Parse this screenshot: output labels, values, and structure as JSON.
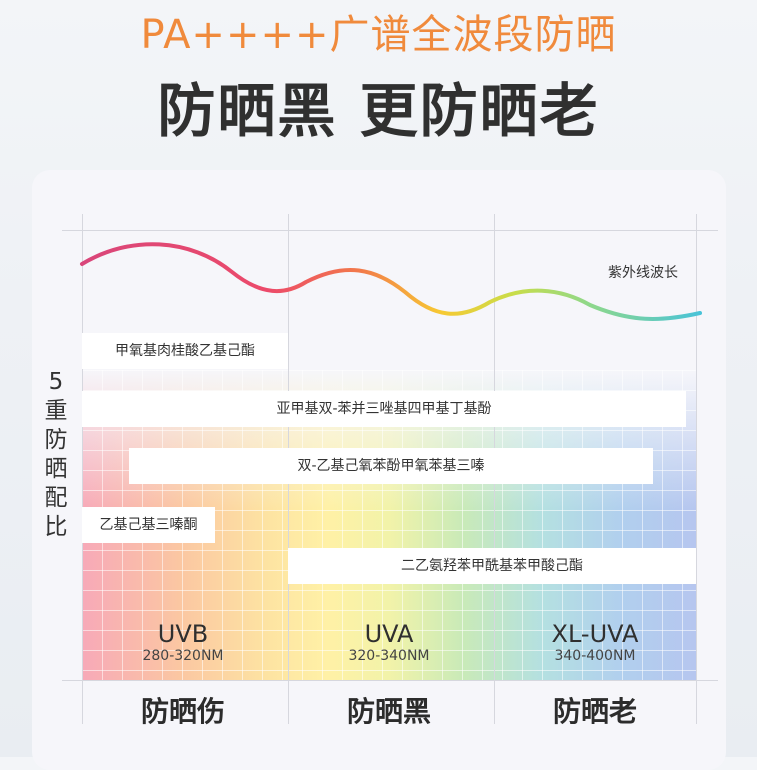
{
  "headline": {
    "line1": "PA++++广谱全波段防晒",
    "line2": "防晒黑 更防晒老"
  },
  "chart": {
    "axis_label": [
      "5",
      "重",
      "防",
      "晒",
      "配",
      "比"
    ],
    "wave_label": "紫外线波长",
    "ingredients": [
      "甲氧基肉桂酸乙基己酯",
      "亚甲基双-苯并三唑基四甲基丁基酚",
      "双-乙基己氧苯酚甲氧苯基三嗪",
      "乙基己基三嗪酮",
      "二乙氨羟苯甲酰基苯甲酸己酯"
    ],
    "bands": [
      {
        "name": "UVB",
        "range": "280-320NM"
      },
      {
        "name": "UVA",
        "range": "320-340NM"
      },
      {
        "name": "XL-UVA",
        "range": "340-400NM"
      }
    ],
    "benefits": [
      "防晒伤",
      "防晒黑",
      "防晒老"
    ]
  },
  "colors": {
    "headline_orange": "#f08a3c",
    "wave_start": "#e8447a",
    "wave_mid": "#f7c933",
    "wave_end": "#49c3d8"
  }
}
